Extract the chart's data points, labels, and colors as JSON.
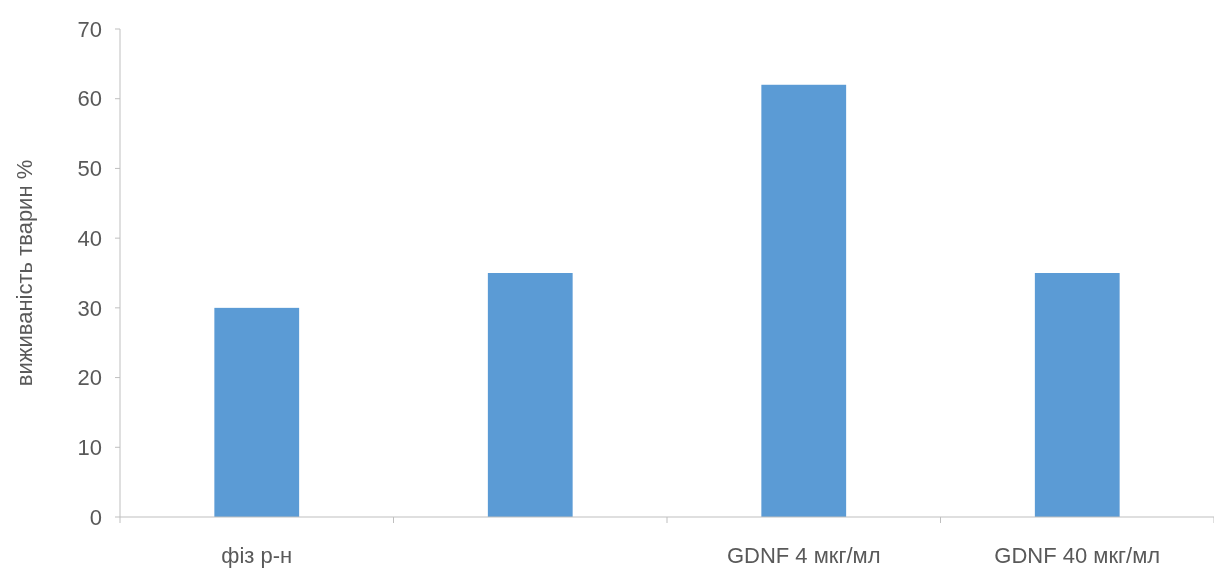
{
  "chart_data": {
    "type": "bar",
    "ylabel": "виживаність тварин %",
    "categories": [
      "фіз р-н",
      null,
      "GDNF 4 мкг/мл",
      "GDNF 40 мкг/мл"
    ],
    "values": [
      30,
      35,
      62,
      35
    ],
    "color": "#5b9bd5",
    "ylim": [
      0,
      70
    ],
    "yticks": [
      0,
      10,
      20,
      30,
      40,
      50,
      60,
      70
    ],
    "grid": false
  }
}
